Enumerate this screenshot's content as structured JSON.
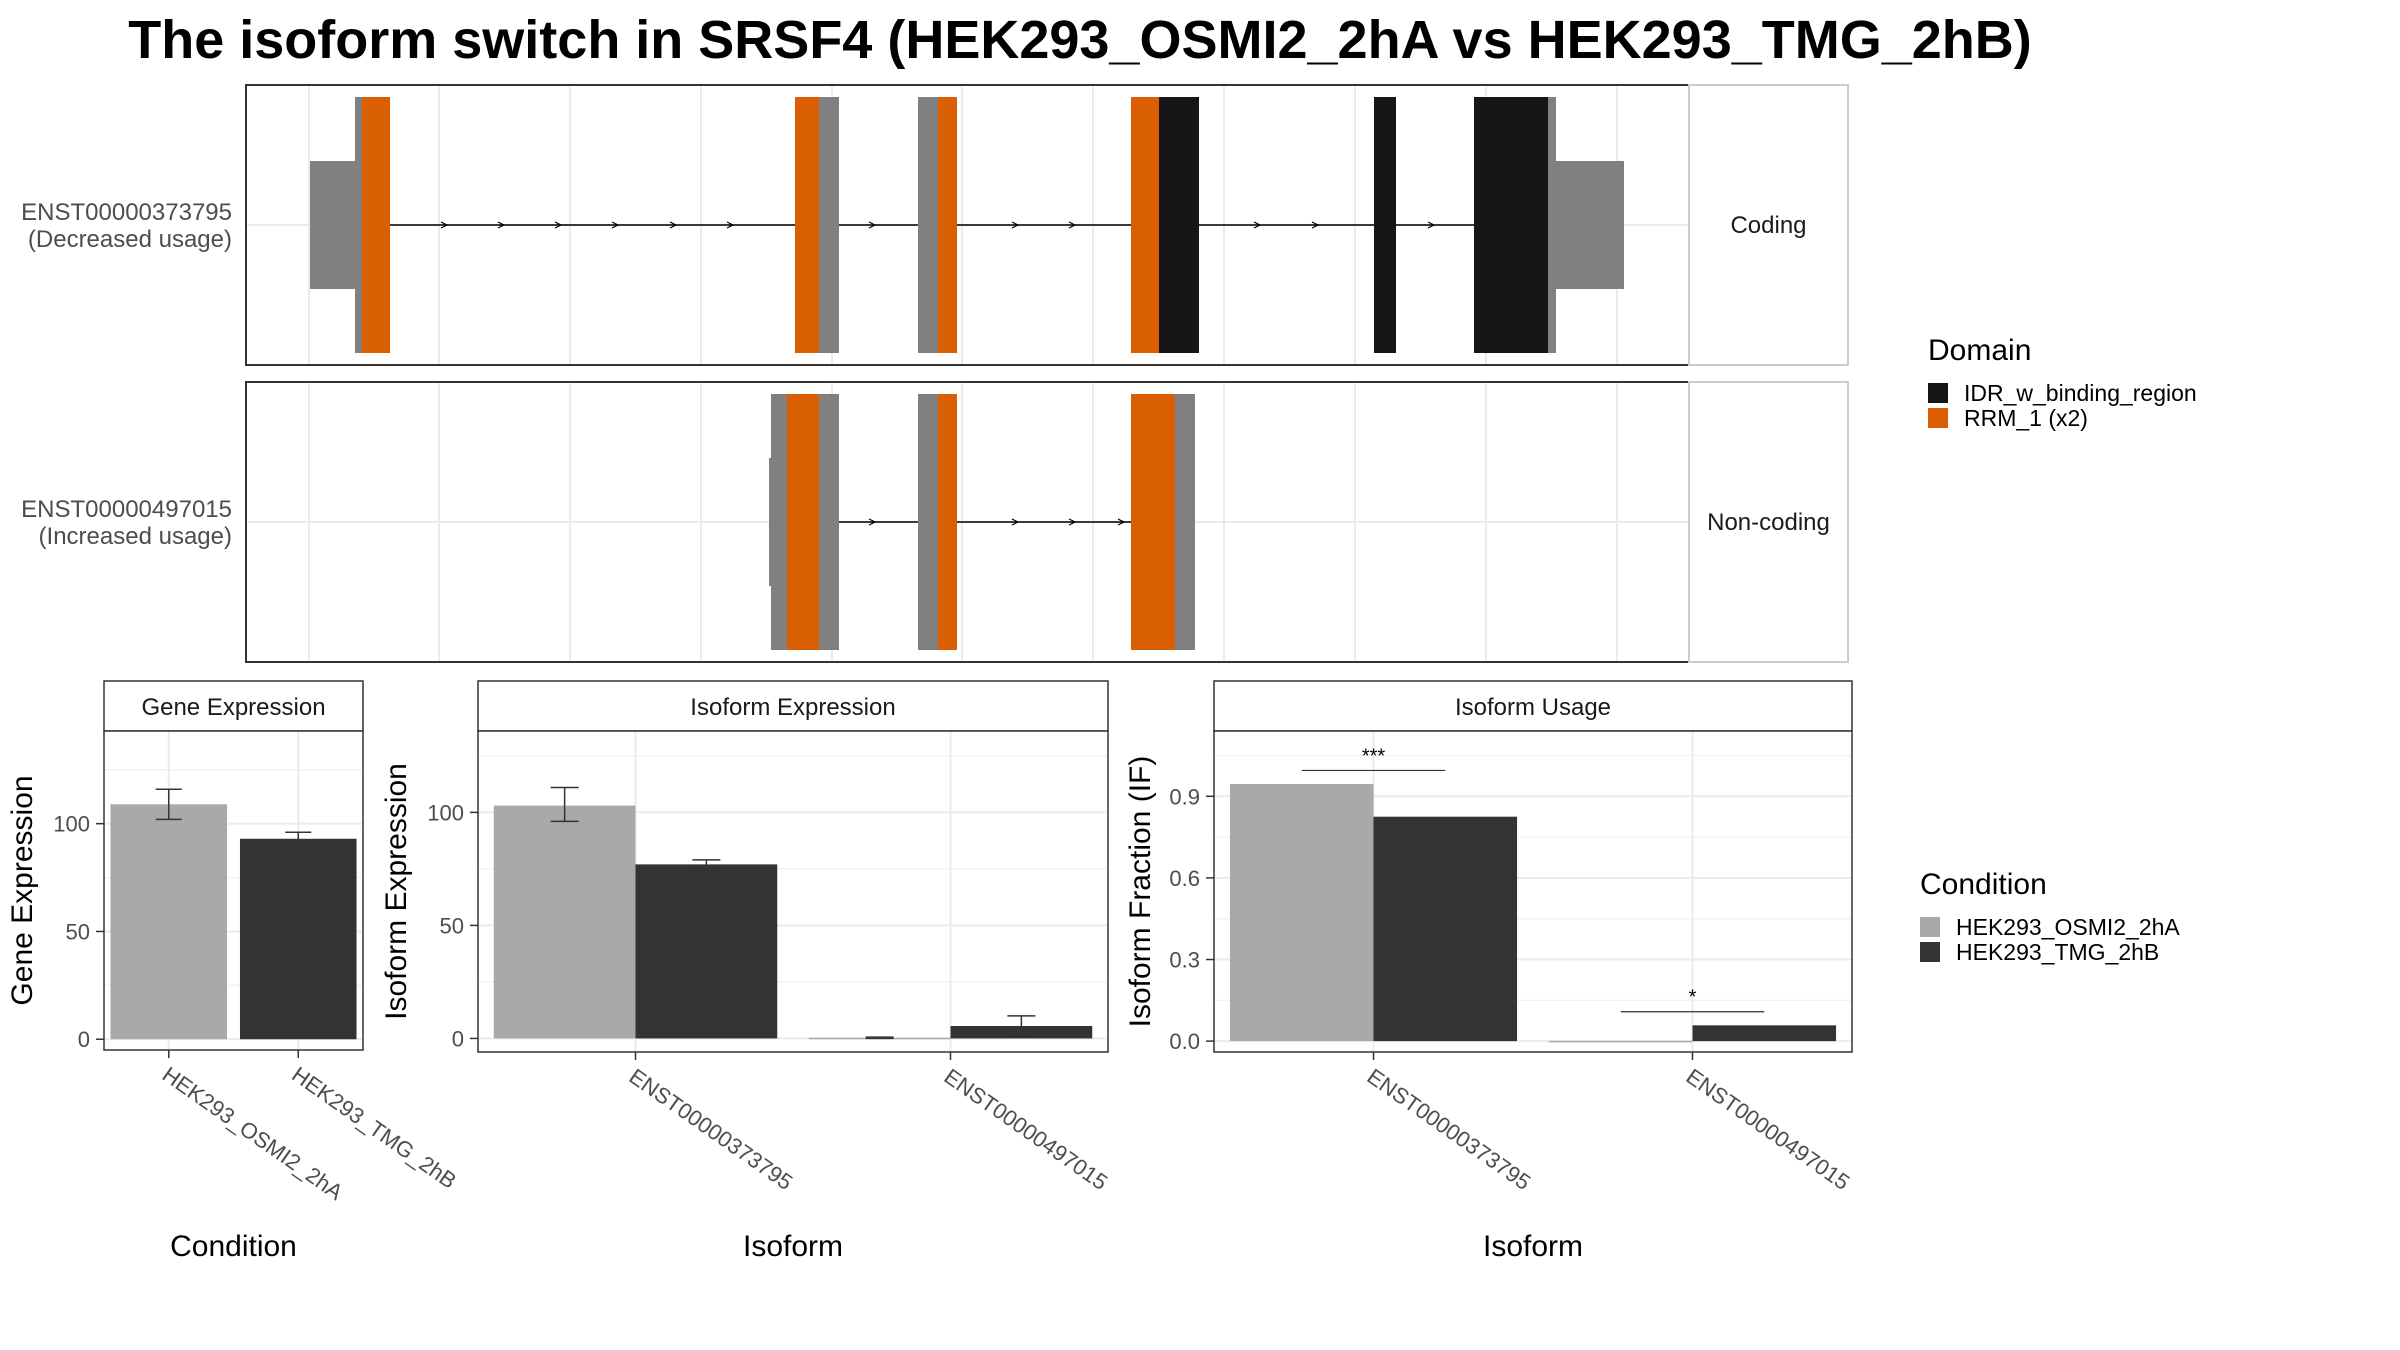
{
  "title": "The isoform switch in SRSF4 (HEK293_OSMI2_2hA vs HEK293_TMG_2hB)",
  "colors": {
    "cond1": "#a9a9a9",
    "cond2": "#333333",
    "idr": "#161616",
    "rrm": "#d95f02",
    "exon": "#808080",
    "grid": "#ebebeb",
    "panel_border": "#333333"
  },
  "structure": {
    "legend_title": "Domain",
    "domain_legend": [
      {
        "name": "IDR_w_binding_region",
        "color": "#161616"
      },
      {
        "name": "RRM_1 (x2)",
        "color": "#d95f02"
      }
    ],
    "isoforms": [
      {
        "id": "ENST00000373795",
        "usage": "(Decreased usage)",
        "strip": "Coding"
      },
      {
        "id": "ENST00000497015",
        "usage": "(Increased usage)",
        "strip": "Non-coding"
      }
    ]
  },
  "chart_data": [
    {
      "type": "bar",
      "title": "Gene Expression",
      "xlabel": "Condition",
      "ylabel": "Gene Expression",
      "categories": [
        "HEK293_OSMI2_2hA",
        "HEK293_TMG_2hB"
      ],
      "values": [
        109,
        93
      ],
      "error_low": [
        102,
        90
      ],
      "error_high": [
        116,
        96
      ],
      "ylim": [
        -5,
        143
      ],
      "yticks": [
        0,
        50,
        100
      ]
    },
    {
      "type": "bar",
      "title": "Isoform Expression",
      "xlabel": "Isoform",
      "ylabel": "Isoform Expression",
      "categories": [
        "ENST00000373795",
        "ENST00000497015"
      ],
      "series": [
        {
          "name": "HEK293_OSMI2_2hA",
          "values": [
            103,
            0.3
          ],
          "error_low": [
            96,
            0
          ],
          "error_high": [
            111,
            0.6
          ]
        },
        {
          "name": "HEK293_TMG_2hB",
          "values": [
            77,
            5.5
          ],
          "error_low": [
            76,
            1
          ],
          "error_high": [
            79,
            10
          ]
        }
      ],
      "ylim": [
        -6,
        136
      ],
      "yticks": [
        0,
        50,
        100
      ]
    },
    {
      "type": "bar",
      "title": "Isoform Usage",
      "xlabel": "Isoform",
      "ylabel": "Isoform Fraction (IF)",
      "categories": [
        "ENST00000373795",
        "ENST00000497015"
      ],
      "series": [
        {
          "name": "HEK293_OSMI2_2hA",
          "values": [
            0.945,
            0.001
          ]
        },
        {
          "name": "HEK293_TMG_2hB",
          "values": [
            0.825,
            0.058
          ]
        }
      ],
      "significance": [
        "***",
        "*"
      ],
      "sig_y": [
        0.995,
        0.108
      ],
      "ylim": [
        -0.04,
        1.14
      ],
      "yticks": [
        0.0,
        0.3,
        0.6,
        0.9
      ],
      "ytick_labels": [
        "0.0",
        "0.3",
        "0.6",
        "0.9"
      ]
    }
  ],
  "condition_legend": {
    "title": "Condition",
    "items": [
      "HEK293_OSMI2_2hA",
      "HEK293_TMG_2hB"
    ]
  }
}
